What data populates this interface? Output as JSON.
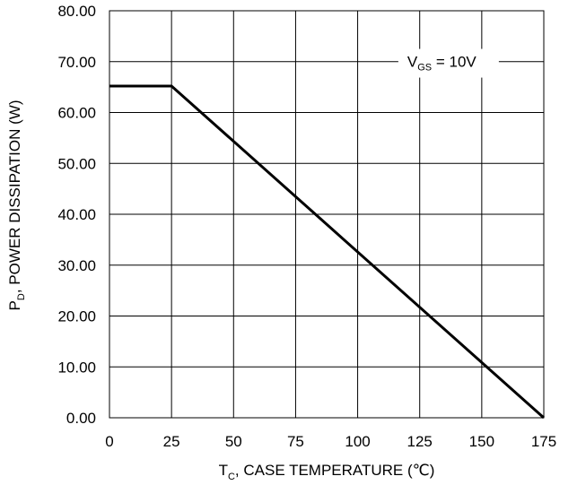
{
  "chart_data": {
    "type": "line",
    "title": "",
    "xlabel": {
      "main": "T",
      "sub": "C",
      "rest": ", CASE TEMPERATURE (℃)"
    },
    "ylabel": {
      "main": "P",
      "sub": "D",
      "rest": ", POWER DISSIPATION (W)"
    },
    "xlim": [
      0,
      175
    ],
    "ylim": [
      0,
      80
    ],
    "xticks": [
      0,
      25,
      50,
      75,
      100,
      125,
      150,
      175
    ],
    "xtick_labels": [
      "0",
      "25",
      "50",
      "75",
      "100",
      "125",
      "150",
      "175"
    ],
    "yticks": [
      0,
      10,
      20,
      30,
      40,
      50,
      60,
      70,
      80
    ],
    "ytick_labels": [
      "0.00",
      "10.00",
      "20.00",
      "30.00",
      "40.00",
      "50.00",
      "60.00",
      "70.00",
      "80.00"
    ],
    "grid": true,
    "series": [
      {
        "x": [
          0,
          25,
          175
        ],
        "y": [
          65.2,
          65.2,
          0
        ],
        "color": "#000000"
      }
    ],
    "annotations": [
      {
        "main": "V",
        "sub": "GS",
        "rest": " = 10V",
        "at": [
          120,
          72.5
        ]
      }
    ]
  }
}
